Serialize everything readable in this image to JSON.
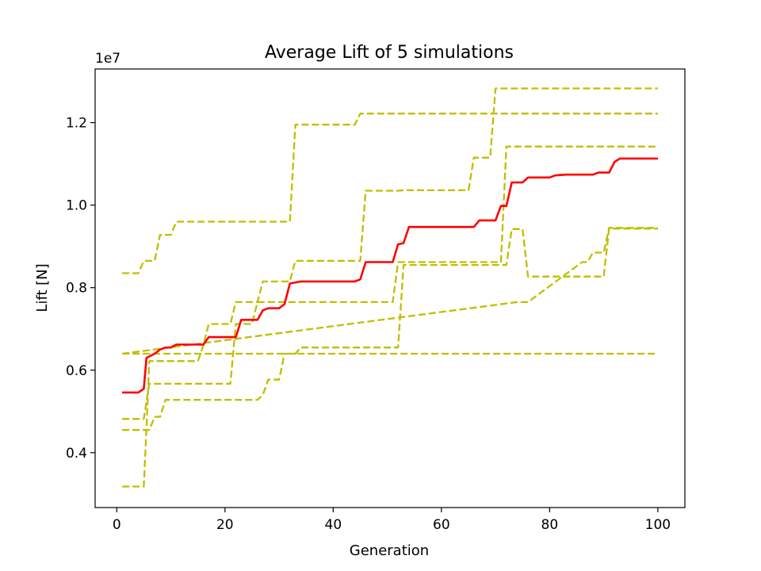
{
  "chart_data": {
    "type": "line",
    "title": "Average Lift of 5 simulations",
    "xlabel": "Generation",
    "ylabel": "Lift [N]",
    "offset_text": "1e7",
    "xlim": [
      -4,
      105
    ],
    "ylim": [
      2.67,
      13.3
    ],
    "x_ticks": [
      0,
      20,
      40,
      60,
      80,
      100
    ],
    "y_ticks": [
      0.4,
      0.6,
      0.8,
      1.0,
      1.2
    ],
    "y_tick_labels": [
      "0.4",
      "0.6",
      "0.8",
      "1.0",
      "1.2"
    ],
    "y_multiplier": 10000000,
    "grid": false,
    "colors": {
      "average": "#ff0000",
      "simulations": "#bfbf00"
    },
    "series": [
      {
        "style": "dashed",
        "color": "#bfbf00",
        "points": [
          [
            1,
            8.35
          ],
          [
            4,
            8.35
          ],
          [
            5,
            8.65
          ],
          [
            7,
            8.65
          ],
          [
            8,
            9.28
          ],
          [
            10,
            9.28
          ],
          [
            11,
            9.6
          ],
          [
            32,
            9.6
          ],
          [
            33,
            11.95
          ],
          [
            44,
            11.95
          ],
          [
            45,
            12.22
          ],
          [
            100,
            12.22
          ]
        ]
      },
      {
        "style": "dashed",
        "color": "#bfbf00",
        "points": [
          [
            1,
            6.4
          ],
          [
            100,
            6.4
          ]
        ]
      },
      {
        "style": "dashed",
        "color": "#bfbf00",
        "points": [
          [
            1,
            3.18
          ],
          [
            5,
            3.18
          ],
          [
            5.5,
            4.6
          ],
          [
            6,
            6.22
          ],
          [
            15,
            6.22
          ],
          [
            16,
            6.6
          ],
          [
            17,
            7.12
          ],
          [
            21,
            7.12
          ],
          [
            22,
            7.65
          ],
          [
            26,
            7.65
          ],
          [
            27,
            8.15
          ],
          [
            32,
            8.15
          ],
          [
            33,
            8.65
          ],
          [
            44,
            8.65
          ],
          [
            45,
            8.65
          ],
          [
            46,
            10.35
          ],
          [
            52,
            10.35
          ],
          [
            53,
            10.36
          ],
          [
            65,
            10.36
          ],
          [
            66,
            11.15
          ],
          [
            69,
            11.15
          ],
          [
            70,
            12.83
          ],
          [
            100,
            12.83
          ]
        ]
      },
      {
        "style": "dashed",
        "color": "#bfbf00",
        "points": [
          [
            1,
            4.82
          ],
          [
            5,
            4.82
          ],
          [
            6,
            5.67
          ],
          [
            21,
            5.67
          ],
          [
            22,
            7.12
          ],
          [
            25,
            7.12
          ],
          [
            26,
            7.65
          ],
          [
            51,
            7.65
          ],
          [
            52,
            8.62
          ],
          [
            71,
            8.62
          ],
          [
            72,
            11.42
          ],
          [
            100,
            11.42
          ]
        ]
      },
      {
        "style": "dashed",
        "color": "#bfbf00",
        "points": [
          [
            1,
            4.55
          ],
          [
            5,
            4.55
          ],
          [
            6,
            4.55
          ],
          [
            7,
            4.87
          ],
          [
            8,
            4.87
          ],
          [
            9,
            5.28
          ],
          [
            26,
            5.28
          ],
          [
            27,
            5.4
          ],
          [
            28,
            5.77
          ],
          [
            30,
            5.77
          ],
          [
            31,
            6.4
          ],
          [
            33,
            6.4
          ],
          [
            34,
            6.55
          ],
          [
            52,
            6.55
          ],
          [
            53,
            8.55
          ],
          [
            71,
            8.55
          ],
          [
            72,
            8.55
          ],
          [
            73,
            9.42
          ],
          [
            75,
            9.42
          ],
          [
            76,
            8.27
          ],
          [
            90,
            8.27
          ],
          [
            91,
            9.43
          ],
          [
            100,
            9.43
          ]
        ]
      },
      {
        "style": "dashed",
        "color": "#bfbf00",
        "points": [
          [
            1,
            6.4
          ],
          [
            74,
            7.65
          ],
          [
            75,
            7.65
          ],
          [
            76,
            7.65
          ],
          [
            86,
            8.62
          ],
          [
            87,
            8.62
          ],
          [
            88,
            8.85
          ],
          [
            90,
            8.85
          ],
          [
            91,
            9.45
          ],
          [
            100,
            9.45
          ]
        ]
      },
      {
        "name": "average",
        "style": "solid",
        "color": "#ff0000",
        "points": [
          [
            1,
            5.46
          ],
          [
            4,
            5.46
          ],
          [
            5,
            5.55
          ],
          [
            5.5,
            6.3
          ],
          [
            7,
            6.4
          ],
          [
            8,
            6.5
          ],
          [
            9,
            6.55
          ],
          [
            10,
            6.55
          ],
          [
            11,
            6.62
          ],
          [
            16,
            6.62
          ],
          [
            17,
            6.8
          ],
          [
            22,
            6.8
          ],
          [
            23,
            7.22
          ],
          [
            26,
            7.22
          ],
          [
            27,
            7.45
          ],
          [
            28,
            7.5
          ],
          [
            30,
            7.5
          ],
          [
            31,
            7.6
          ],
          [
            32,
            8.1
          ],
          [
            34,
            8.15
          ],
          [
            44,
            8.15
          ],
          [
            45,
            8.2
          ],
          [
            46,
            8.62
          ],
          [
            51,
            8.62
          ],
          [
            52,
            9.05
          ],
          [
            53,
            9.08
          ],
          [
            54,
            9.47
          ],
          [
            66,
            9.47
          ],
          [
            67,
            9.63
          ],
          [
            70,
            9.63
          ],
          [
            71,
            9.98
          ],
          [
            72,
            9.98
          ],
          [
            73,
            10.55
          ],
          [
            75,
            10.55
          ],
          [
            76,
            10.67
          ],
          [
            80,
            10.67
          ],
          [
            81,
            10.72
          ],
          [
            83,
            10.74
          ],
          [
            88,
            10.74
          ],
          [
            89,
            10.79
          ],
          [
            91,
            10.79
          ],
          [
            92,
            11.05
          ],
          [
            93,
            11.13
          ],
          [
            100,
            11.13
          ]
        ]
      }
    ]
  }
}
